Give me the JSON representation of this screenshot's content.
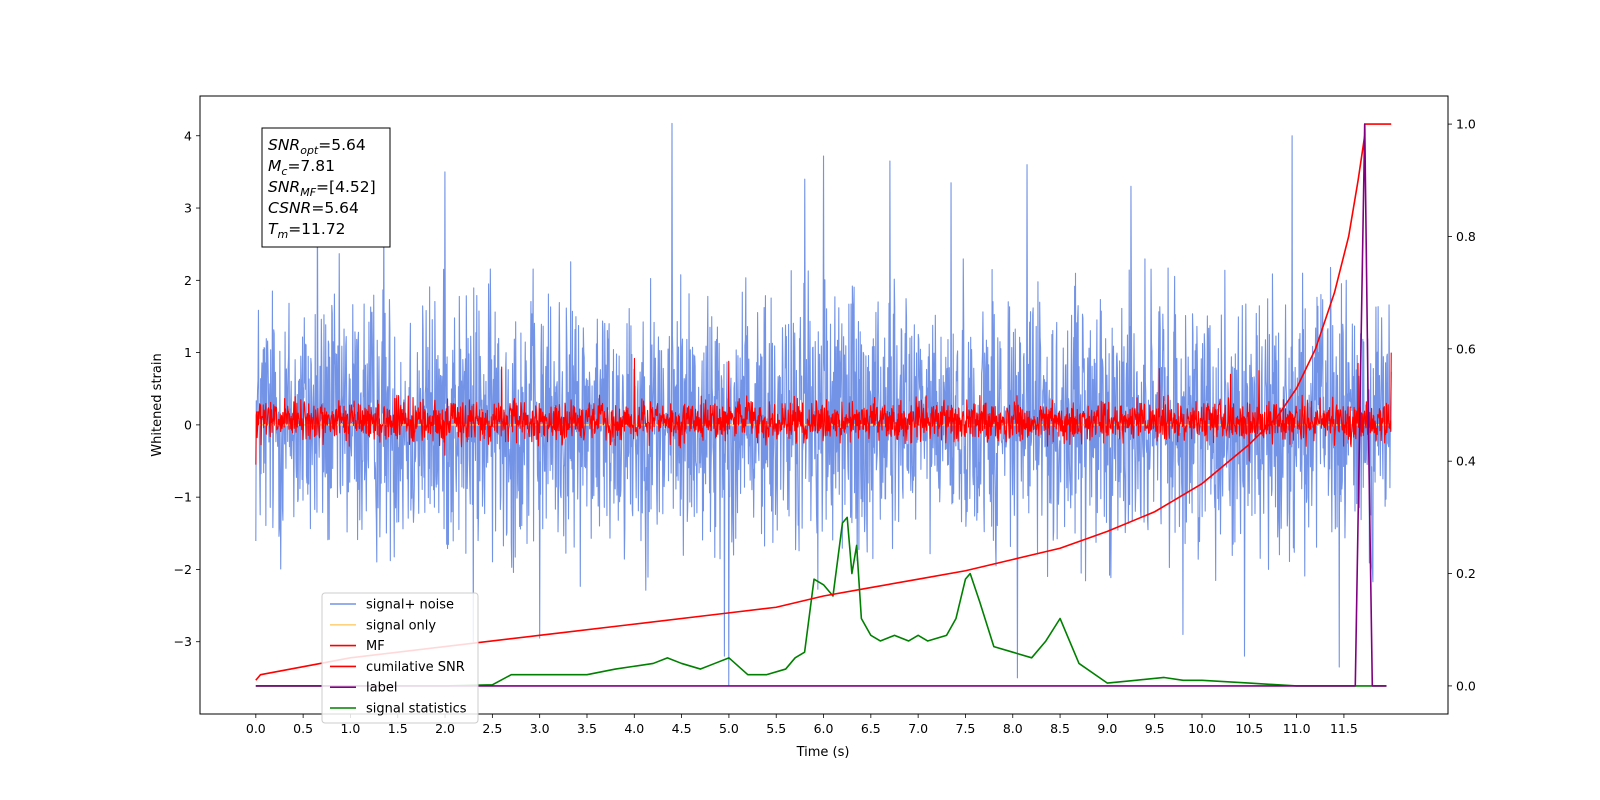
{
  "chart_data": {
    "type": "line",
    "xlabel": "Time (s)",
    "ylabel": "Whitened strain",
    "xlim": [
      -0.59,
      12.6
    ],
    "ylim": [
      -4.0,
      4.55
    ],
    "y2lim": [
      -0.05,
      1.05
    ],
    "x_ticks": [
      0.0,
      0.5,
      1.0,
      1.5,
      2.0,
      2.5,
      3.0,
      3.5,
      4.0,
      4.5,
      5.0,
      5.5,
      6.0,
      6.5,
      7.0,
      7.5,
      8.0,
      8.5,
      9.0,
      9.5,
      10.0,
      10.5,
      11.0,
      11.5
    ],
    "x_tick_labels": [
      "0.0",
      "0.5",
      "1.0",
      "1.5",
      "2.0",
      "2.5",
      "3.0",
      "3.5",
      "4.0",
      "4.5",
      "5.0",
      "5.5",
      "6.0",
      "6.5",
      "7.0",
      "7.5",
      "8.0",
      "8.5",
      "9.0",
      "9.5",
      "10.0",
      "10.5",
      "11.0",
      "11.5"
    ],
    "y_ticks": [
      -3,
      -2,
      -1,
      0,
      1,
      2,
      3,
      4
    ],
    "y_tick_labels": [
      "−3",
      "−2",
      "−1",
      "0",
      "1",
      "2",
      "3",
      "4"
    ],
    "y2_ticks": [
      0.0,
      0.2,
      0.4,
      0.6,
      0.8,
      1.0
    ],
    "y2_tick_labels": [
      "0.0",
      "0.2",
      "0.4",
      "0.6",
      "0.8",
      "1.0"
    ],
    "grid": false,
    "legend_placement": "lower-left",
    "info_box": {
      "snr_opt": "=5.64",
      "mc": "=7.81",
      "snr_mf": "=[4.52]",
      "csnr": "=5.64",
      "tm": "=11.72"
    },
    "series": [
      {
        "name": "signal+ noise",
        "axis": "left",
        "color": "#7393e6",
        "style": "noise",
        "x_range": [
          0.0,
          12.0
        ],
        "envelope_high": 2.4,
        "envelope_low": -2.3,
        "peaks": [
          [
            4.4,
            4.17
          ],
          [
            10.95,
            4.0
          ],
          [
            6.0,
            3.72
          ],
          [
            6.7,
            3.65
          ],
          [
            8.15,
            3.6
          ],
          [
            2.0,
            3.5
          ],
          [
            0.65,
            3.25
          ],
          [
            1.35,
            3.2
          ],
          [
            7.35,
            3.35
          ],
          [
            5.8,
            3.4
          ],
          [
            9.25,
            3.3
          ]
        ],
        "troughs": [
          [
            5.0,
            -3.6
          ],
          [
            8.05,
            -3.5
          ],
          [
            4.95,
            -3.2
          ],
          [
            2.3,
            -3.0
          ],
          [
            10.45,
            -3.2
          ],
          [
            11.45,
            -3.35
          ],
          [
            3.0,
            -2.95
          ],
          [
            9.8,
            -2.9
          ]
        ]
      },
      {
        "name": "signal only",
        "axis": "left",
        "color": "#ffd27f",
        "style": "line",
        "x": [
          0.0,
          12.0
        ],
        "y": [
          0.0,
          0.0
        ]
      },
      {
        "name": "MF",
        "axis": "left",
        "color": "#ff0000",
        "style": "noise",
        "x_range": [
          0.0,
          12.0
        ],
        "envelope_high": 0.42,
        "envelope_low": -0.32,
        "peaks": [
          [
            0.0,
            0.95
          ],
          [
            4.0,
            0.92
          ],
          [
            5.0,
            0.88
          ],
          [
            11.65,
            0.85
          ],
          [
            12.0,
            1.0
          ],
          [
            2.6,
            0.8
          ],
          [
            9.55,
            0.78
          ],
          [
            10.3,
            0.7
          ],
          [
            10.6,
            0.75
          ]
        ],
        "troughs": [
          [
            0.0,
            -0.55
          ],
          [
            10.5,
            -0.5
          ],
          [
            2.0,
            -0.42
          ]
        ]
      },
      {
        "name": "cumilative SNR",
        "axis": "right",
        "color": "#ff0000",
        "style": "line",
        "x": [
          0.0,
          0.05,
          1.0,
          2.0,
          3.0,
          4.0,
          5.0,
          5.5,
          6.0,
          6.5,
          7.0,
          7.5,
          8.0,
          8.5,
          9.0,
          9.5,
          10.0,
          10.5,
          10.8,
          11.0,
          11.2,
          11.4,
          11.55,
          11.65,
          11.72,
          11.72,
          12.0
        ],
        "y": [
          0.01,
          0.02,
          0.05,
          0.07,
          0.09,
          0.11,
          0.13,
          0.14,
          0.16,
          0.175,
          0.19,
          0.205,
          0.225,
          0.245,
          0.275,
          0.31,
          0.36,
          0.43,
          0.48,
          0.53,
          0.6,
          0.7,
          0.8,
          0.9,
          0.98,
          1.0,
          1.0
        ]
      },
      {
        "name": "label",
        "axis": "right",
        "color": "#800080",
        "style": "line",
        "x": [
          0.0,
          11.62,
          11.68,
          11.72,
          11.76,
          11.8,
          11.82,
          11.95
        ],
        "y": [
          0.0,
          0.0,
          0.6,
          1.0,
          0.45,
          0.0,
          0.0,
          0.0
        ]
      },
      {
        "name": "signal statistics",
        "axis": "right",
        "color": "#008000",
        "style": "line",
        "x": [
          0.0,
          2.0,
          2.5,
          2.7,
          3.0,
          3.2,
          3.5,
          3.8,
          4.0,
          4.2,
          4.35,
          4.5,
          4.7,
          4.85,
          5.0,
          5.2,
          5.4,
          5.6,
          5.7,
          5.8,
          5.9,
          6.0,
          6.1,
          6.2,
          6.25,
          6.3,
          6.35,
          6.4,
          6.5,
          6.6,
          6.75,
          6.9,
          7.0,
          7.1,
          7.3,
          7.4,
          7.5,
          7.55,
          7.65,
          7.8,
          8.0,
          8.2,
          8.35,
          8.5,
          8.7,
          9.0,
          9.3,
          9.6,
          9.8,
          10.0,
          10.5,
          11.0,
          11.5,
          11.95
        ],
        "y": [
          0.0,
          0.0,
          0.002,
          0.02,
          0.02,
          0.02,
          0.02,
          0.03,
          0.035,
          0.04,
          0.05,
          0.04,
          0.03,
          0.04,
          0.05,
          0.02,
          0.02,
          0.03,
          0.05,
          0.06,
          0.19,
          0.18,
          0.16,
          0.29,
          0.3,
          0.2,
          0.25,
          0.12,
          0.09,
          0.08,
          0.09,
          0.08,
          0.09,
          0.08,
          0.09,
          0.12,
          0.19,
          0.2,
          0.15,
          0.07,
          0.06,
          0.05,
          0.08,
          0.12,
          0.04,
          0.005,
          0.01,
          0.015,
          0.01,
          0.01,
          0.005,
          0.0,
          0.0,
          0.0
        ]
      }
    ]
  }
}
